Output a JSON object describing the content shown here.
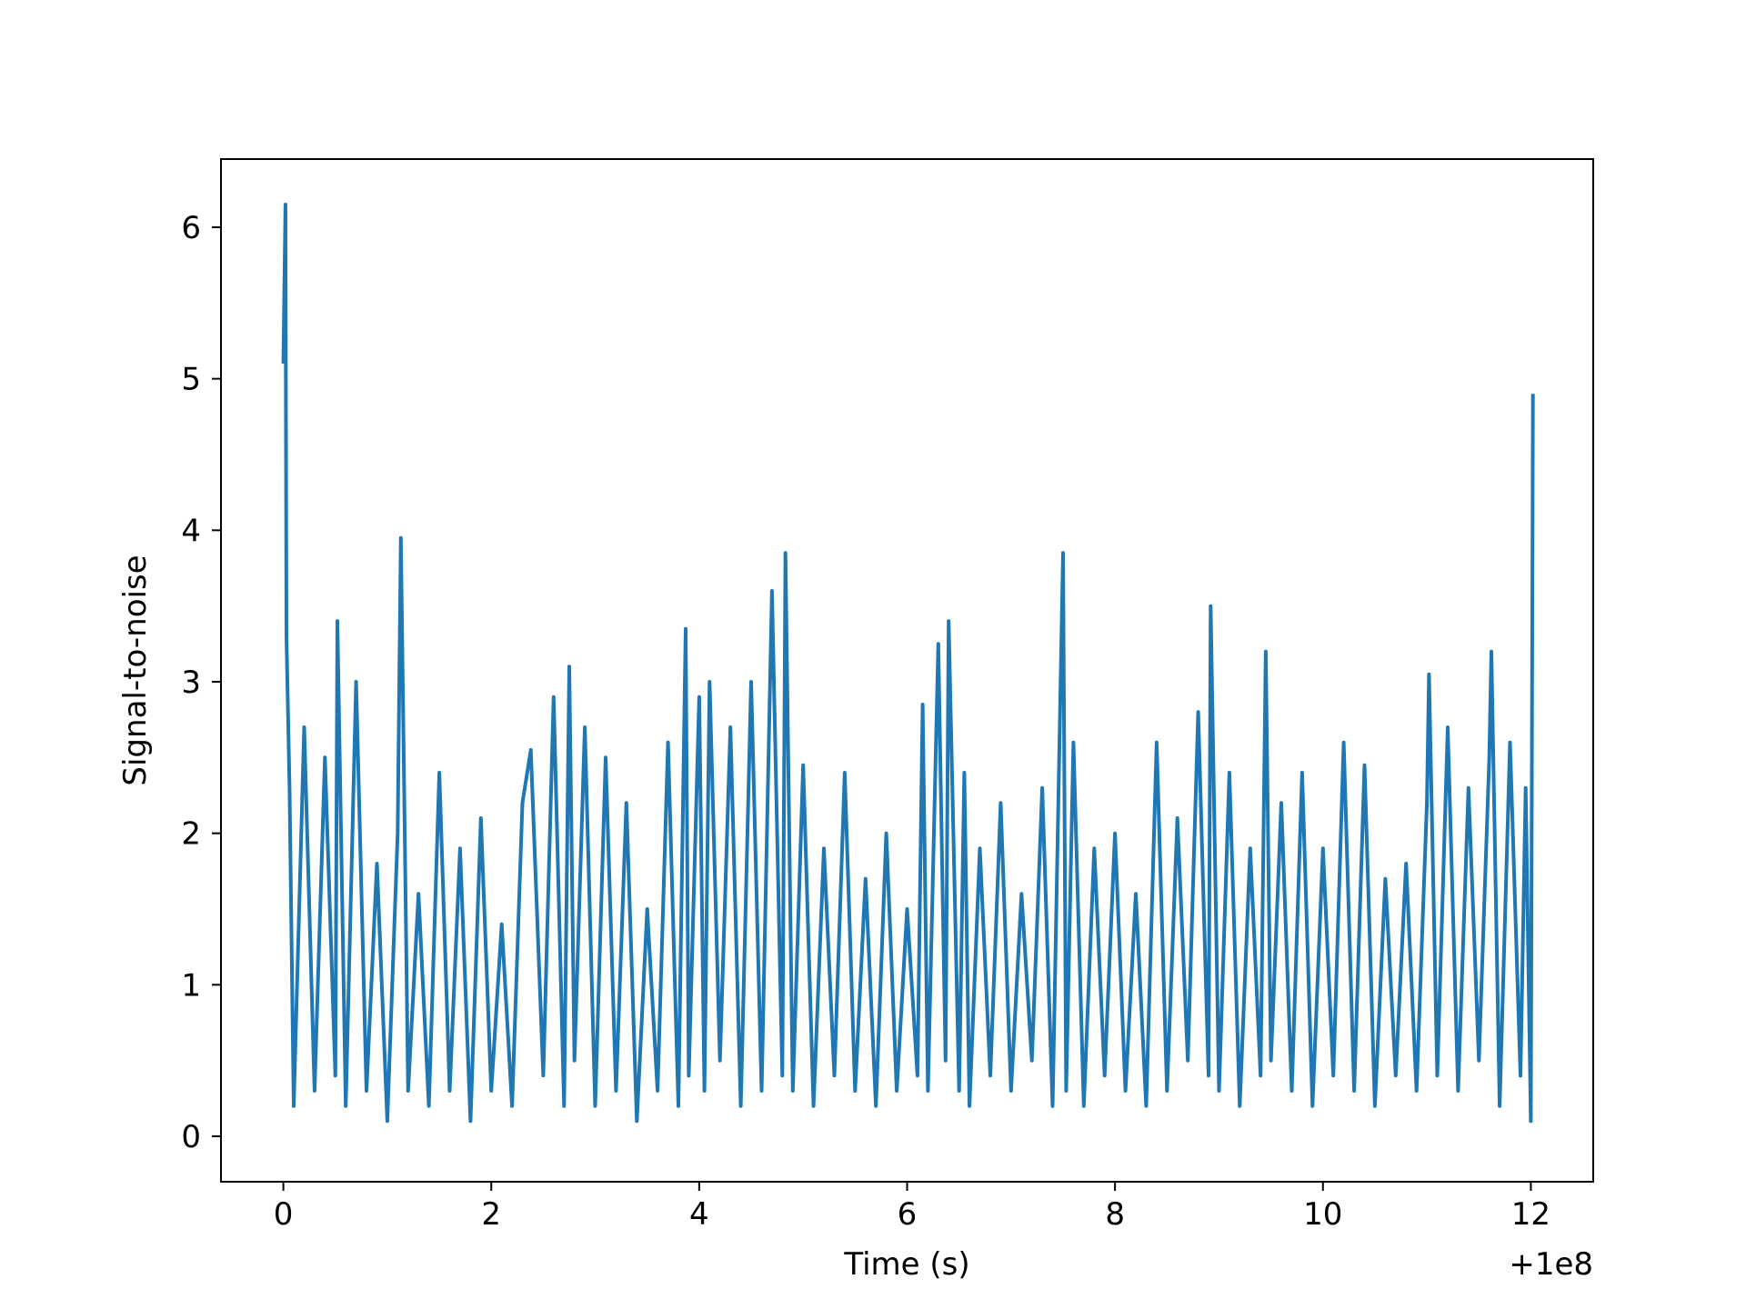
{
  "chart_data": {
    "type": "line",
    "title": "",
    "xlabel": "Time (s)",
    "ylabel": "Signal-to-noise",
    "x_offset_label": "+1e8",
    "xlim": [
      -0.6,
      12.6
    ],
    "ylim": [
      -0.3,
      6.45
    ],
    "xticks": [
      0,
      2,
      4,
      6,
      8,
      10,
      12
    ],
    "yticks": [
      0,
      1,
      2,
      3,
      4,
      5,
      6
    ],
    "grid": false,
    "legend": "none",
    "color": "#1f77b4",
    "series": [
      {
        "x": [
          0.0,
          0.02,
          0.03,
          0.06,
          0.1,
          0.2,
          0.3,
          0.4,
          0.5,
          0.52,
          0.6,
          0.7,
          0.8,
          0.9,
          1.0,
          1.1,
          1.13,
          1.2,
          1.3,
          1.4,
          1.5,
          1.6,
          1.7,
          1.8,
          1.9,
          2.0,
          2.1,
          2.2,
          2.3,
          2.38,
          2.5,
          2.6,
          2.7,
          2.75,
          2.8,
          2.9,
          3.0,
          3.1,
          3.2,
          3.3,
          3.4,
          3.5,
          3.6,
          3.7,
          3.8,
          3.87,
          3.9,
          4.0,
          4.05,
          4.1,
          4.2,
          4.3,
          4.4,
          4.5,
          4.6,
          4.7,
          4.8,
          4.83,
          4.9,
          5.0,
          5.1,
          5.2,
          5.3,
          5.4,
          5.5,
          5.6,
          5.7,
          5.8,
          5.9,
          6.0,
          6.1,
          6.15,
          6.2,
          6.3,
          6.37,
          6.4,
          6.5,
          6.55,
          6.6,
          6.7,
          6.8,
          6.9,
          7.0,
          7.1,
          7.2,
          7.3,
          7.4,
          7.5,
          7.53,
          7.6,
          7.7,
          7.8,
          7.9,
          8.0,
          8.1,
          8.2,
          8.3,
          8.4,
          8.5,
          8.6,
          8.7,
          8.8,
          8.9,
          8.92,
          9.0,
          9.1,
          9.2,
          9.3,
          9.4,
          9.45,
          9.5,
          9.6,
          9.7,
          9.8,
          9.9,
          10.0,
          10.1,
          10.2,
          10.3,
          10.4,
          10.5,
          10.6,
          10.7,
          10.8,
          10.9,
          11.0,
          11.02,
          11.1,
          11.2,
          11.3,
          11.4,
          11.5,
          11.6,
          11.62,
          11.7,
          11.8,
          11.9,
          11.95,
          12.0,
          12.02
        ],
        "y": [
          5.1,
          6.15,
          3.3,
          2.3,
          0.2,
          2.7,
          0.3,
          2.5,
          0.4,
          3.4,
          0.2,
          3.0,
          0.3,
          1.8,
          0.1,
          2.0,
          3.95,
          0.3,
          1.6,
          0.2,
          2.4,
          0.3,
          1.9,
          0.1,
          2.1,
          0.3,
          1.4,
          0.2,
          2.2,
          2.55,
          0.4,
          2.9,
          0.2,
          3.1,
          0.5,
          2.7,
          0.2,
          2.5,
          0.3,
          2.2,
          0.1,
          1.5,
          0.3,
          2.6,
          0.2,
          3.35,
          0.4,
          2.9,
          0.3,
          3.0,
          0.5,
          2.7,
          0.2,
          3.0,
          0.3,
          3.6,
          0.4,
          3.85,
          0.3,
          2.45,
          0.2,
          1.9,
          0.4,
          2.4,
          0.3,
          1.7,
          0.2,
          2.0,
          0.3,
          1.5,
          0.4,
          2.85,
          0.3,
          3.25,
          0.5,
          3.4,
          0.3,
          2.4,
          0.2,
          1.9,
          0.4,
          2.2,
          0.3,
          1.6,
          0.5,
          2.3,
          0.2,
          3.85,
          0.3,
          2.6,
          0.2,
          1.9,
          0.4,
          2.0,
          0.3,
          1.6,
          0.2,
          2.6,
          0.3,
          2.1,
          0.5,
          2.8,
          0.4,
          3.5,
          0.3,
          2.4,
          0.2,
          1.9,
          0.4,
          3.2,
          0.5,
          2.2,
          0.3,
          2.4,
          0.2,
          1.9,
          0.4,
          2.6,
          0.3,
          2.45,
          0.2,
          1.7,
          0.4,
          1.8,
          0.3,
          2.2,
          3.05,
          0.4,
          2.7,
          0.3,
          2.3,
          0.5,
          2.5,
          3.2,
          0.2,
          2.6,
          0.4,
          2.3,
          0.1,
          4.9
        ]
      }
    ]
  }
}
